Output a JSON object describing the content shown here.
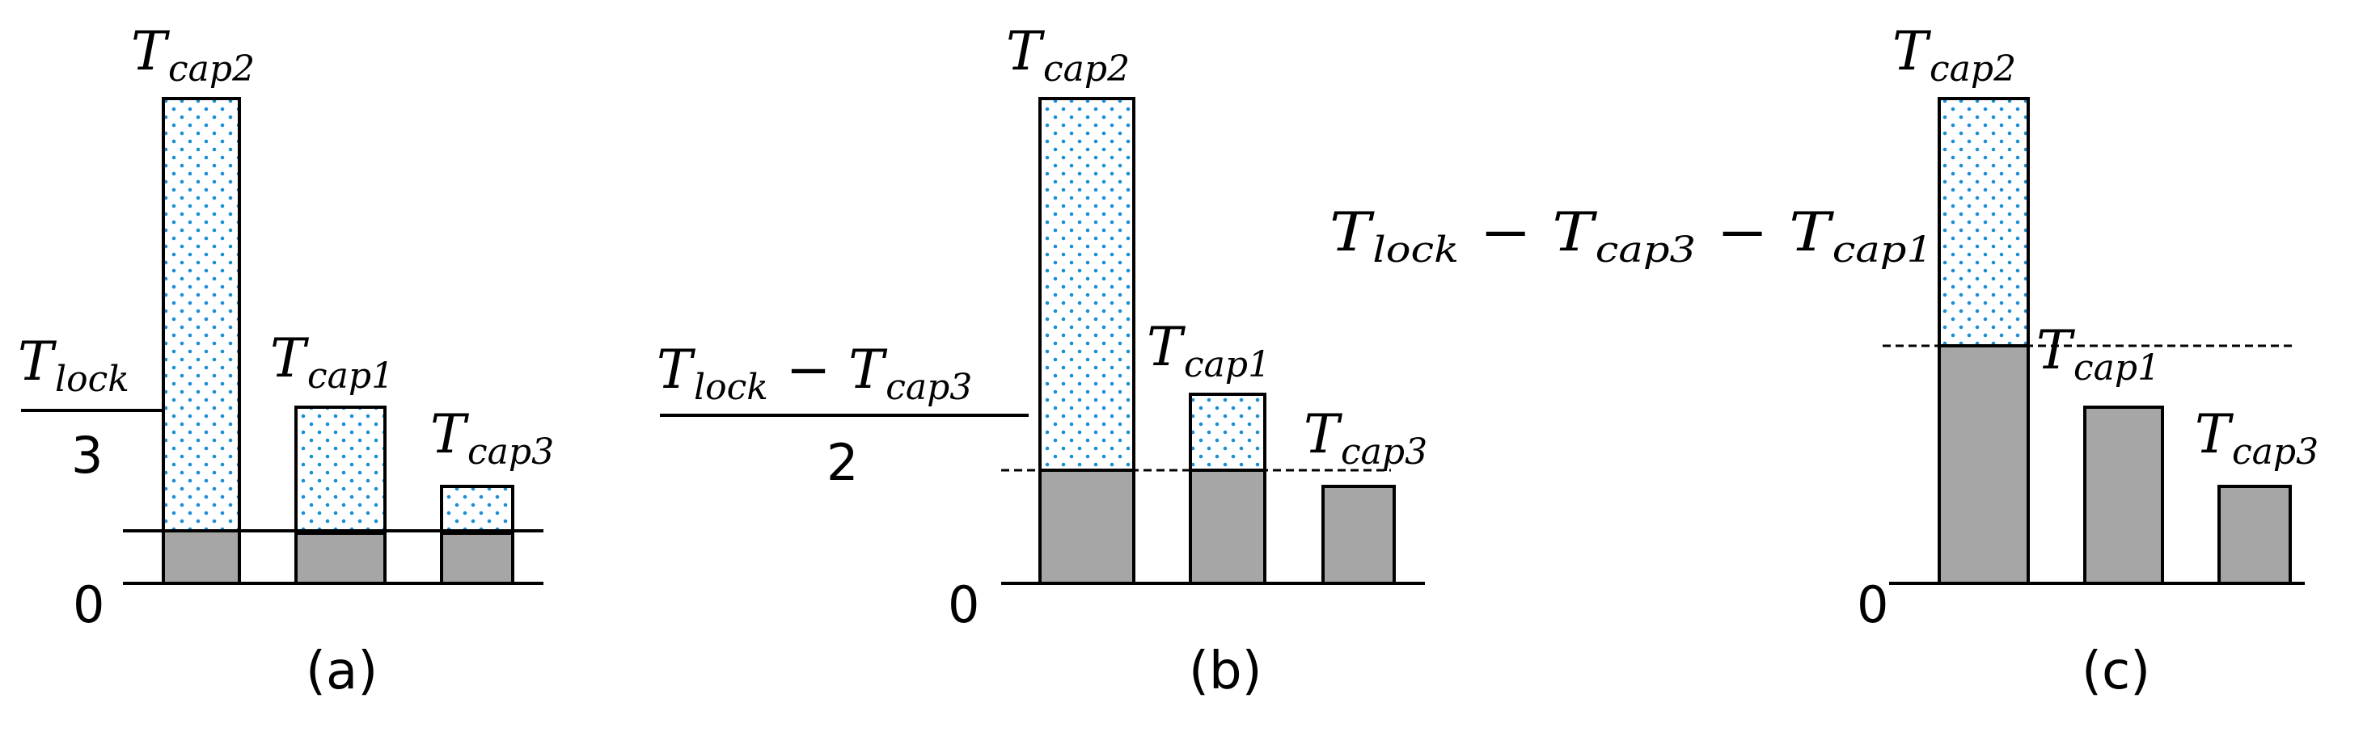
{
  "labels": {
    "zero": "0",
    "T": "T",
    "cap1": "cap1",
    "cap2": "cap2",
    "cap3": "cap3",
    "lock": "lock",
    "minus": "−"
  },
  "panels": [
    {
      "caption": "(a)",
      "numerator": "T_lock",
      "denominator": "3"
    },
    {
      "caption": "(b)",
      "numerator": "T_lock − T_cap3",
      "denominator": "2"
    },
    {
      "caption": "(c)",
      "expression": "T_lock − T_cap3 − T_cap1"
    }
  ],
  "colors": {
    "used": "#a6a6a6",
    "dots": "#1a8fd6",
    "outline": "#000000"
  }
}
